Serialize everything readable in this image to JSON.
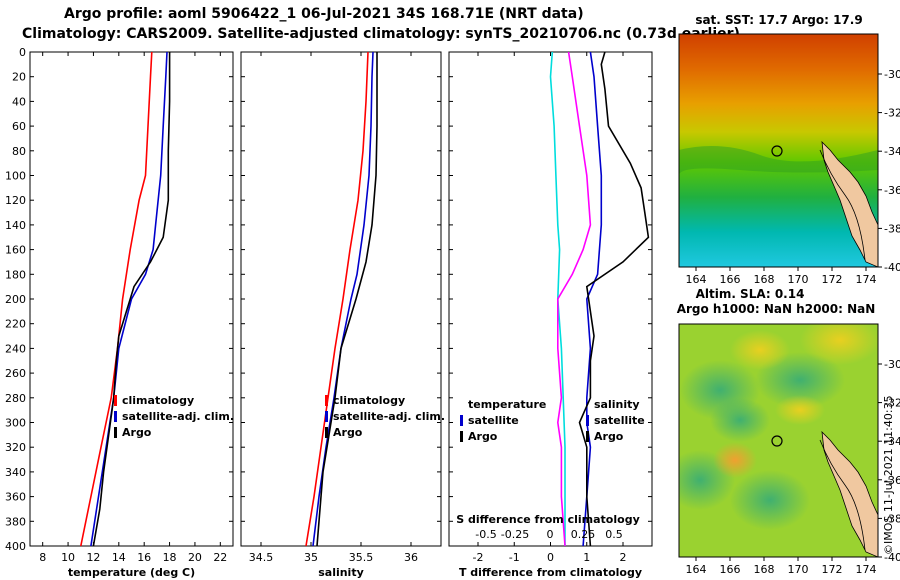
{
  "title_line1": "Argo profile: aoml 5906422_1 06-Jul-2021 34S 168.71E (NRT data)",
  "title_line2": "Climatology: CARS2009. Satellite-adjusted climatology: synTS_20210706.nc (0.73d earlier)",
  "depth_ticks": [
    0,
    20,
    40,
    60,
    80,
    100,
    120,
    140,
    160,
    180,
    200,
    220,
    240,
    260,
    280,
    300,
    320,
    340,
    360,
    380,
    400
  ],
  "colors": {
    "climatology": "#ff0000",
    "satellite": "#0000cc",
    "argo": "#000000",
    "salinity_diff": "#00dddd",
    "temperature_diff": "#ff00ff"
  },
  "chart_data": [
    {
      "type": "line",
      "id": "temperature",
      "xlabel": "temperature (deg C)",
      "xlim": [
        7,
        23
      ],
      "ylim": [
        0,
        400
      ],
      "xticks": [
        "8",
        "10",
        "12",
        "14",
        "16",
        "18",
        "20",
        "22"
      ],
      "xtick_values": [
        8,
        10,
        12,
        14,
        16,
        18,
        20,
        22
      ],
      "legend": [
        "climatology",
        "satellite-adj. clim.",
        "Argo"
      ],
      "series": [
        {
          "name": "climatology",
          "color": "#ff0000",
          "depth": [
            0,
            20,
            60,
            100,
            120,
            160,
            200,
            240,
            280,
            320,
            360,
            400
          ],
          "values": [
            16.6,
            16.5,
            16.3,
            16.1,
            15.6,
            14.9,
            14.3,
            13.9,
            13.4,
            12.6,
            11.8,
            11.0
          ]
        },
        {
          "name": "satellite-adj. clim.",
          "color": "#0000cc",
          "depth": [
            0,
            20,
            60,
            100,
            140,
            160,
            180,
            200,
            240,
            280,
            320,
            360,
            400
          ],
          "values": [
            17.8,
            17.7,
            17.5,
            17.3,
            16.9,
            16.7,
            16.1,
            15.0,
            14.0,
            13.6,
            13.0,
            12.4,
            11.8
          ]
        },
        {
          "name": "Argo",
          "color": "#000000",
          "depth": [
            0,
            10,
            40,
            80,
            120,
            150,
            170,
            190,
            210,
            230,
            250,
            280,
            310,
            340,
            370,
            400
          ],
          "values": [
            18.0,
            18.0,
            18.0,
            17.9,
            17.9,
            17.5,
            16.5,
            15.2,
            14.6,
            14.0,
            13.8,
            13.6,
            13.2,
            12.8,
            12.5,
            12.0
          ]
        }
      ]
    },
    {
      "type": "line",
      "id": "salinity",
      "xlabel": "salinity",
      "xlim": [
        34.3,
        36.3
      ],
      "ylim": [
        0,
        400
      ],
      "xticks": [
        "34.5",
        "35",
        "35.5",
        "36"
      ],
      "xtick_values": [
        34.5,
        35,
        35.5,
        36
      ],
      "legend": [
        "climatology",
        "satellite-adj. clim.",
        "Argo"
      ],
      "series": [
        {
          "name": "climatology",
          "color": "#ff0000",
          "depth": [
            0,
            40,
            80,
            120,
            160,
            200,
            240,
            280,
            320,
            360,
            400
          ],
          "values": [
            35.57,
            35.55,
            35.52,
            35.47,
            35.39,
            35.32,
            35.24,
            35.17,
            35.1,
            35.03,
            34.95
          ]
        },
        {
          "name": "satellite-adj. clim.",
          "color": "#0000cc",
          "depth": [
            0,
            20,
            60,
            100,
            140,
            180,
            200,
            240,
            280,
            320,
            360,
            400
          ],
          "values": [
            35.62,
            35.61,
            35.6,
            35.58,
            35.53,
            35.46,
            35.4,
            35.3,
            35.23,
            35.15,
            35.08,
            35.02
          ]
        },
        {
          "name": "Argo",
          "color": "#000000",
          "depth": [
            0,
            20,
            60,
            100,
            140,
            170,
            200,
            240,
            280,
            310,
            340,
            370,
            400
          ],
          "values": [
            35.66,
            35.66,
            35.66,
            35.65,
            35.61,
            35.55,
            35.45,
            35.3,
            35.24,
            35.18,
            35.12,
            35.09,
            35.06
          ]
        }
      ]
    },
    {
      "type": "line",
      "id": "difference",
      "xlabel": "T difference from climatology",
      "top_label": "S difference from climatology",
      "xlim": [
        -2.8,
        2.8
      ],
      "ylim": [
        0,
        400
      ],
      "xticks": [
        "-2",
        "-1",
        "0",
        "1",
        "2"
      ],
      "xtick_values": [
        -2,
        -1,
        0,
        1,
        2
      ],
      "top_ticks": [
        "-0.5",
        "-0.25",
        "0",
        "0.25",
        "0.5"
      ],
      "legend_left_title": "temperature",
      "legend_right_title": "salinity",
      "legend": [
        "satellite",
        "Argo"
      ],
      "series": [
        {
          "name": "salinity satellite",
          "color": "#00dddd",
          "depth": [
            0,
            20,
            60,
            100,
            140,
            160,
            200,
            240,
            280,
            320,
            360,
            400
          ],
          "values": [
            0.05,
            0.0,
            0.1,
            0.15,
            0.2,
            0.25,
            0.2,
            0.3,
            0.35,
            0.4,
            0.4,
            0.4
          ]
        },
        {
          "name": "temperature satellite",
          "color": "#ff00ff",
          "depth": [
            0,
            20,
            60,
            100,
            140,
            160,
            180,
            200,
            240,
            280,
            300,
            320,
            360,
            400
          ],
          "values": [
            0.5,
            0.6,
            0.8,
            1.0,
            1.1,
            0.9,
            0.6,
            0.2,
            0.2,
            0.3,
            0.2,
            0.3,
            0.3,
            0.4
          ]
        },
        {
          "name": "salinity Argo",
          "color": "#0000cc",
          "depth": [
            0,
            20,
            60,
            100,
            140,
            180,
            200,
            240,
            280,
            300,
            320,
            360,
            400
          ],
          "values": [
            1.1,
            1.2,
            1.3,
            1.4,
            1.4,
            1.3,
            1.0,
            1.1,
            1.0,
            1.0,
            1.1,
            1.0,
            0.9
          ]
        },
        {
          "name": "temperature Argo",
          "color": "#000000",
          "depth": [
            0,
            10,
            30,
            60,
            90,
            110,
            130,
            150,
            170,
            190,
            210,
            230,
            250,
            280,
            300,
            320,
            360,
            400
          ],
          "values": [
            1.5,
            1.4,
            1.5,
            1.6,
            2.2,
            2.5,
            2.6,
            2.7,
            2.0,
            1.0,
            1.1,
            1.2,
            1.1,
            1.1,
            0.8,
            1.0,
            1.0,
            1.1
          ]
        }
      ]
    }
  ],
  "map_sst": {
    "title": "sat. SST: 17.7 Argo: 17.9",
    "lat_ticks": [
      "-30",
      "-32",
      "-34",
      "-36",
      "-38",
      "-40"
    ],
    "lon_ticks": [
      "164",
      "166",
      "168",
      "170",
      "172",
      "174"
    ]
  },
  "map_sla": {
    "title_line1": "Altim. SLA: 0.14",
    "title_line2": "Argo h1000: NaN h2000: NaN",
    "lat_ticks": [
      "-30",
      "-32",
      "-34",
      "-36",
      "-38",
      "-40"
    ],
    "lon_ticks": [
      "164",
      "166",
      "168",
      "170",
      "172",
      "174"
    ]
  },
  "footer": "©IMOS 11-Jul-2021 11:40:35"
}
